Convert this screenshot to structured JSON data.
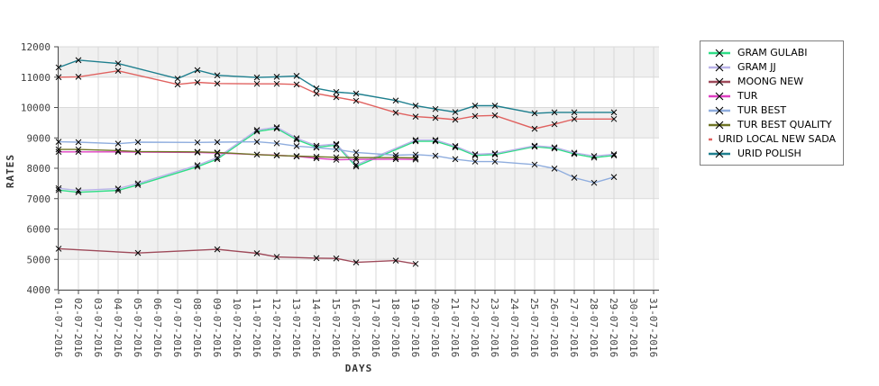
{
  "chart_data": {
    "type": "line",
    "title": "",
    "xlabel": "DAYS",
    "ylabel": "RATES",
    "ylim": [
      4000,
      12000
    ],
    "y_ticks": [
      4000,
      5000,
      6000,
      7000,
      8000,
      9000,
      10000,
      11000,
      12000
    ],
    "x_tick_labels": [
      "01-07-2016",
      "02-07-2016",
      "03-07-2016",
      "04-07-2016",
      "05-07-2016",
      "06-07-2016",
      "07-07-2016",
      "08-07-2016",
      "09-07-2016",
      "10-07-2016",
      "11-07-2016",
      "12-07-2016",
      "13-07-2016",
      "14-07-2016",
      "15-07-2016",
      "16-07-2016",
      "17-07-2016",
      "18-07-2016",
      "19-07-2016",
      "20-07-2016",
      "21-07-2016",
      "22-07-2016",
      "23-07-2016",
      "24-07-2016",
      "25-07-2016",
      "26-07-2016",
      "27-07-2016",
      "28-07-2016",
      "29-07-2016",
      "30-07-2016",
      "31-07-2016"
    ],
    "grid": true,
    "alternating_bands": true,
    "marker": "x",
    "legend_position": "right",
    "series": [
      {
        "name": "GRAM GULABI",
        "color": "#2edd86",
        "points": [
          [
            1,
            7280
          ],
          [
            2,
            7210
          ],
          [
            4,
            7270
          ],
          [
            5,
            7450
          ],
          [
            8,
            8050
          ],
          [
            9,
            8300
          ],
          [
            11,
            9210
          ],
          [
            12,
            9310
          ],
          [
            13,
            8940
          ],
          [
            14,
            8690
          ],
          [
            15,
            8760
          ],
          [
            16,
            8060
          ],
          [
            19,
            8890
          ],
          [
            20,
            8890
          ],
          [
            21,
            8690
          ],
          [
            22,
            8420
          ],
          [
            23,
            8450
          ],
          [
            25,
            8710
          ],
          [
            26,
            8650
          ],
          [
            27,
            8470
          ],
          [
            28,
            8350
          ],
          [
            29,
            8420
          ]
        ]
      },
      {
        "name": "GRAM JJ",
        "color": "#b9b3e8",
        "points": [
          [
            1,
            7340
          ],
          [
            2,
            7270
          ],
          [
            4,
            7330
          ],
          [
            5,
            7500
          ],
          [
            8,
            8100
          ],
          [
            9,
            8350
          ],
          [
            11,
            9260
          ],
          [
            12,
            9350
          ],
          [
            13,
            8990
          ],
          [
            14,
            8740
          ],
          [
            15,
            8800
          ],
          [
            16,
            8110
          ],
          [
            19,
            8930
          ],
          [
            20,
            8930
          ],
          [
            21,
            8730
          ],
          [
            22,
            8460
          ],
          [
            23,
            8490
          ],
          [
            25,
            8740
          ],
          [
            26,
            8690
          ],
          [
            27,
            8510
          ],
          [
            28,
            8400
          ],
          [
            29,
            8460
          ]
        ]
      },
      {
        "name": "MOONG NEW",
        "color": "#9e4a5a",
        "points": [
          [
            1,
            5350
          ],
          [
            5,
            5210
          ],
          [
            9,
            5330
          ],
          [
            11,
            5200
          ],
          [
            12,
            5080
          ],
          [
            14,
            5040
          ],
          [
            15,
            5030
          ],
          [
            16,
            4900
          ],
          [
            18,
            4960
          ],
          [
            19,
            4850
          ]
        ]
      },
      {
        "name": "TUR",
        "color": "#de3fc1",
        "points": [
          [
            1,
            8540
          ],
          [
            2,
            8540
          ],
          [
            4,
            8540
          ],
          [
            5,
            8530
          ],
          [
            8,
            8520
          ],
          [
            9,
            8500
          ],
          [
            11,
            8450
          ],
          [
            12,
            8430
          ],
          [
            13,
            8390
          ],
          [
            14,
            8330
          ],
          [
            15,
            8280
          ],
          [
            16,
            8290
          ],
          [
            18,
            8300
          ],
          [
            19,
            8290
          ]
        ]
      },
      {
        "name": "TUR BEST",
        "color": "#8fadde",
        "points": [
          [
            1,
            8870
          ],
          [
            2,
            8860
          ],
          [
            4,
            8810
          ],
          [
            5,
            8860
          ],
          [
            8,
            8850
          ],
          [
            9,
            8860
          ],
          [
            11,
            8870
          ],
          [
            12,
            8820
          ],
          [
            13,
            8730
          ],
          [
            14,
            8680
          ],
          [
            15,
            8620
          ],
          [
            16,
            8520
          ],
          [
            18,
            8430
          ],
          [
            19,
            8450
          ],
          [
            20,
            8410
          ],
          [
            21,
            8300
          ],
          [
            22,
            8220
          ],
          [
            23,
            8220
          ],
          [
            25,
            8120
          ],
          [
            26,
            7990
          ],
          [
            27,
            7690
          ],
          [
            28,
            7520
          ],
          [
            29,
            7710
          ]
        ]
      },
      {
        "name": "TUR BEST QUALITY",
        "color": "#6e7424",
        "points": [
          [
            1,
            8620
          ],
          [
            2,
            8620
          ],
          [
            4,
            8580
          ],
          [
            5,
            8550
          ],
          [
            8,
            8540
          ],
          [
            9,
            8520
          ],
          [
            11,
            8450
          ],
          [
            12,
            8420
          ],
          [
            13,
            8400
          ],
          [
            14,
            8380
          ],
          [
            15,
            8360
          ],
          [
            16,
            8350
          ],
          [
            18,
            8350
          ],
          [
            19,
            8340
          ]
        ]
      },
      {
        "name": "URID LOCAL NEW SADA",
        "color": "#e06260",
        "points": [
          [
            1,
            11000
          ],
          [
            2,
            11010
          ],
          [
            4,
            11210
          ],
          [
            7,
            10760
          ],
          [
            8,
            10830
          ],
          [
            9,
            10790
          ],
          [
            11,
            10780
          ],
          [
            12,
            10780
          ],
          [
            13,
            10760
          ],
          [
            14,
            10460
          ],
          [
            15,
            10340
          ],
          [
            16,
            10220
          ],
          [
            18,
            9830
          ],
          [
            19,
            9700
          ],
          [
            20,
            9660
          ],
          [
            21,
            9600
          ],
          [
            22,
            9720
          ],
          [
            23,
            9740
          ],
          [
            25,
            9300
          ],
          [
            26,
            9450
          ],
          [
            27,
            9620
          ],
          [
            29,
            9620
          ]
        ]
      },
      {
        "name": "URID POLISH",
        "color": "#1e7f8e",
        "points": [
          [
            1,
            11320
          ],
          [
            2,
            11560
          ],
          [
            4,
            11450
          ],
          [
            7,
            10950
          ],
          [
            8,
            11230
          ],
          [
            9,
            11060
          ],
          [
            11,
            10990
          ],
          [
            12,
            11010
          ],
          [
            13,
            11040
          ],
          [
            14,
            10630
          ],
          [
            15,
            10510
          ],
          [
            16,
            10460
          ],
          [
            18,
            10230
          ],
          [
            19,
            10060
          ],
          [
            20,
            9950
          ],
          [
            21,
            9850
          ],
          [
            22,
            10060
          ],
          [
            23,
            10060
          ],
          [
            25,
            9810
          ],
          [
            26,
            9840
          ],
          [
            27,
            9840
          ],
          [
            29,
            9840
          ]
        ]
      }
    ]
  },
  "style_colors": {
    "band": "#f0f0f0",
    "grid": "#d9d9d9",
    "axis": "#4d4d4d",
    "marker": "#000000",
    "legend_border": "#7f7f7f"
  }
}
